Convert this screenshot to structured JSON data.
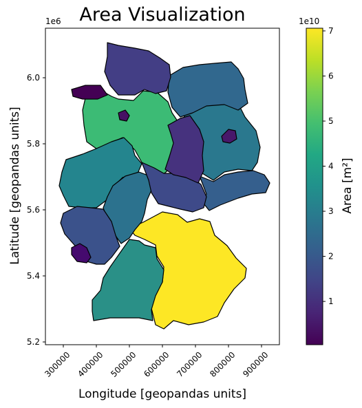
{
  "map": {
    "title": "Area Visualization",
    "xlabel": "Longitude [geopandas units]",
    "ylabel": "Latitude [geopandas units]",
    "y_offset_label": "1e6",
    "x_ticks": [
      "300000",
      "400000",
      "500000",
      "600000",
      "700000",
      "800000",
      "900000"
    ],
    "y_ticks": [
      "5.2",
      "5.4",
      "5.6",
      "5.8",
      "6.0"
    ],
    "colormap": "viridis",
    "colorbar": {
      "label": "Area [m²]",
      "offset_label": "1e10",
      "ticks": [
        "1",
        "2",
        "3",
        "4",
        "5",
        "6",
        "7"
      ],
      "min": 0.04,
      "max": 7.06
    },
    "regions": [
      {
        "value": 7.06,
        "color": "#fde725"
      },
      {
        "value": 3.58,
        "color": "#2a9087"
      },
      {
        "value": 4.76,
        "color": "#3cbb75"
      },
      {
        "value": 3.41,
        "color": "#24858e"
      },
      {
        "value": 2.97,
        "color": "#2a788e"
      },
      {
        "value": 2.95,
        "color": "#2c728e"
      },
      {
        "value": 2.11,
        "color": "#355f8d"
      },
      {
        "value": 2.31,
        "color": "#31688e"
      },
      {
        "value": 1.85,
        "color": "#3b528b"
      },
      {
        "value": 1.58,
        "color": "#433e85"
      },
      {
        "value": 1.84,
        "color": "#3e4a89"
      },
      {
        "value": 0.26,
        "color": "#46327e"
      },
      {
        "value": 0.09,
        "color": "#450a6e"
      },
      {
        "value": 0.04,
        "color": "#440154"
      },
      {
        "value": 0.09,
        "color": "#48186a"
      },
      {
        "value": 0.07,
        "color": "#471164"
      }
    ]
  }
}
